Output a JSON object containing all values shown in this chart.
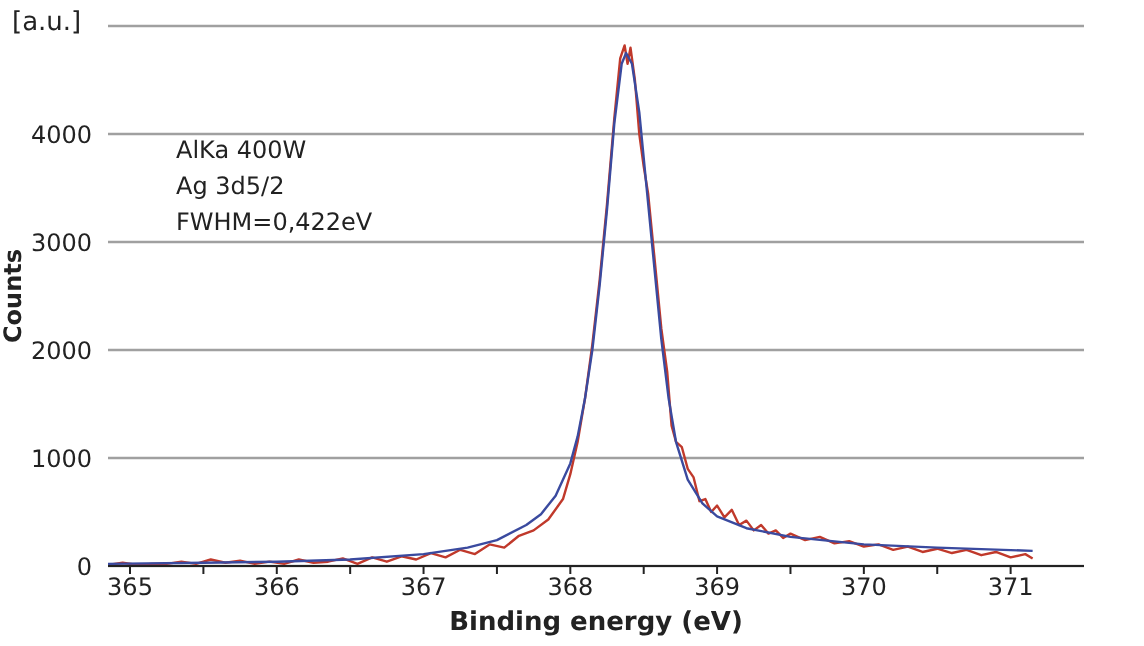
{
  "chart_data": {
    "type": "line",
    "xlabel": "Binding energy (eV)",
    "ylabel": "Counts",
    "annotations": [
      "[a.u.]",
      "AlKa 400W",
      "Ag 3d5/2",
      "FWHM=0,422eV"
    ],
    "xlim": [
      364.85,
      371.5
    ],
    "xticks": [
      365,
      {
        "value": 365.5,
        "label": null
      },
      366,
      {
        "value": 366.5,
        "label": null
      },
      367,
      {
        "value": 367.5,
        "label": null
      },
      368,
      {
        "value": 368.5,
        "label": null
      },
      369,
      {
        "value": 369.5,
        "label": null
      },
      370,
      {
        "value": 370.5,
        "label": null
      },
      371
    ],
    "ylim": [
      0,
      5000
    ],
    "yticks": [
      0,
      1000,
      2000,
      3000,
      4000,
      {
        "value": 5000,
        "label": null
      }
    ],
    "grid": "y",
    "marker": "none",
    "line_style": "solid",
    "series": [
      {
        "color": "#c0392b",
        "x": [
          364.85,
          364.95,
          365.05,
          365.15,
          365.25,
          365.35,
          365.45,
          365.55,
          365.65,
          365.75,
          365.85,
          365.95,
          366.05,
          366.15,
          366.25,
          366.35,
          366.45,
          366.55,
          366.65,
          366.75,
          366.85,
          366.95,
          367.05,
          367.15,
          367.25,
          367.35,
          367.45,
          367.55,
          367.65,
          367.75,
          367.85,
          367.95,
          368.0,
          368.05,
          368.1,
          368.15,
          368.2,
          368.25,
          368.3,
          368.34,
          368.37,
          368.39,
          368.41,
          368.44,
          368.47,
          368.5,
          368.53,
          368.57,
          368.62,
          368.66,
          368.69,
          368.72,
          368.76,
          368.8,
          368.84,
          368.88,
          368.92,
          368.96,
          369.0,
          369.05,
          369.1,
          369.15,
          369.2,
          369.25,
          369.3,
          369.35,
          369.4,
          369.45,
          369.5,
          369.6,
          369.7,
          369.8,
          369.9,
          370.0,
          370.1,
          370.2,
          370.3,
          370.4,
          370.5,
          370.6,
          370.7,
          370.8,
          370.9,
          371.0,
          371.1,
          371.15
        ],
        "values": [
          10,
          30,
          10,
          20,
          20,
          40,
          20,
          60,
          30,
          50,
          20,
          40,
          20,
          60,
          30,
          40,
          70,
          20,
          80,
          40,
          90,
          60,
          120,
          80,
          150,
          110,
          200,
          170,
          280,
          330,
          430,
          620,
          850,
          1150,
          1550,
          2050,
          2650,
          3350,
          4150,
          4700,
          4820,
          4650,
          4800,
          4500,
          4000,
          3700,
          3450,
          2900,
          2200,
          1800,
          1300,
          1150,
          1100,
          900,
          820,
          600,
          620,
          500,
          560,
          450,
          520,
          380,
          420,
          330,
          380,
          300,
          330,
          260,
          300,
          240,
          270,
          210,
          230,
          180,
          200,
          150,
          180,
          130,
          160,
          120,
          150,
          100,
          130,
          80,
          110,
          70
        ]
      },
      {
        "color": "#3a4a9f",
        "x": [
          364.85,
          365.5,
          366,
          366.5,
          367,
          367.3,
          367.5,
          367.7,
          367.8,
          367.9,
          368.0,
          368.05,
          368.1,
          368.15,
          368.2,
          368.25,
          368.3,
          368.35,
          368.38,
          368.42,
          368.47,
          368.52,
          368.57,
          368.62,
          368.67,
          368.72,
          368.8,
          368.9,
          369.0,
          369.2,
          369.5,
          370,
          370.5,
          371.15
        ],
        "values": [
          20,
          30,
          40,
          60,
          110,
          170,
          240,
          380,
          480,
          650,
          950,
          1200,
          1550,
          2000,
          2600,
          3300,
          4100,
          4650,
          4750,
          4650,
          4200,
          3500,
          2800,
          2100,
          1550,
          1150,
          800,
          580,
          460,
          350,
          270,
          200,
          170,
          140
        ]
      }
    ]
  }
}
